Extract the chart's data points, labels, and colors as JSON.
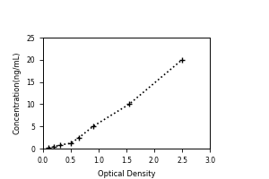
{
  "x_data": [
    0.1,
    0.2,
    0.3,
    0.5,
    0.65,
    0.9,
    1.55,
    2.5
  ],
  "y_data": [
    0.2,
    0.4,
    0.8,
    1.2,
    2.5,
    5.0,
    10.0,
    20.0
  ],
  "xlabel": "Optical Density",
  "ylabel": "Concentration(ng/mL)",
  "xlim": [
    0,
    3
  ],
  "ylim": [
    0,
    25
  ],
  "xticks": [
    0,
    0.5,
    1.0,
    1.5,
    2.0,
    2.5,
    3.0
  ],
  "yticks": [
    0,
    5,
    10,
    15,
    20,
    25
  ],
  "line_color": "#000000",
  "marker_color": "#000000",
  "marker": "+",
  "linestyle": "dotted",
  "linewidth": 1.2,
  "markersize": 5,
  "background_color": "#ffffff",
  "label_fontsize": 6,
  "tick_fontsize": 5.5
}
